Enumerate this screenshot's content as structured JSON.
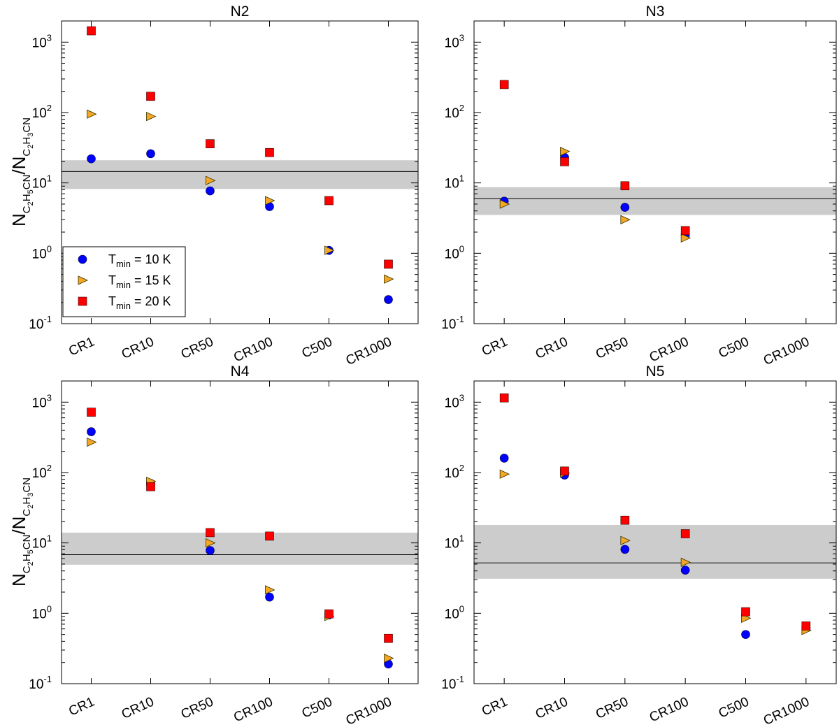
{
  "figure": {
    "ylabel_main": "N",
    "ylabel_num_sub": "C",
    "ylabel_num_sub2": "2",
    "ylabel_num_sub3": "H",
    "ylabel_num_sub4": "5",
    "ylabel_num_sub5": "CN",
    "ylabel_slash": "/N",
    "ylabel_den_sub": "C",
    "ylabel_den_sub2": "2",
    "ylabel_den_sub3": "H",
    "ylabel_den_sub4": "3",
    "ylabel_den_sub5": "CN",
    "legend": [
      {
        "prefix": "T",
        "sub": "min",
        "suffix": " = 10 K"
      },
      {
        "prefix": "T",
        "sub": "min",
        "suffix": " = 15 K"
      },
      {
        "prefix": "T",
        "sub": "min",
        "suffix": " = 20 K"
      }
    ]
  },
  "chart_data": [
    {
      "type": "scatter",
      "title": "N2",
      "yscale": "log",
      "ylim": [
        0.1,
        2000
      ],
      "yticks": [
        {
          "base": "10",
          "exp": "-1"
        },
        {
          "base": "10",
          "exp": "0"
        },
        {
          "base": "10",
          "exp": "1"
        },
        {
          "base": "10",
          "exp": "2"
        },
        {
          "base": "10",
          "exp": "3"
        }
      ],
      "categories": [
        "CR1",
        "CR10",
        "CR50",
        "CR100",
        "C500",
        "CR1000"
      ],
      "band": {
        "low": 8.2,
        "high": 21,
        "line": 14.5
      },
      "legend_position": "lower-left",
      "series": [
        {
          "name": "Tmin = 10 K",
          "marker": "circle",
          "color": "#0000ff",
          "values": [
            22,
            26,
            7.7,
            4.6,
            1.1,
            0.22
          ]
        },
        {
          "name": "Tmin = 15 K",
          "marker": "triangle-right",
          "color": "#f5a623",
          "values": [
            95,
            88,
            10.8,
            5.6,
            1.1,
            0.43
          ]
        },
        {
          "name": "Tmin = 20 K",
          "marker": "square",
          "color": "#ff0000",
          "values": [
            1450,
            170,
            36,
            27,
            5.6,
            0.7
          ]
        }
      ]
    },
    {
      "type": "scatter",
      "title": "N3",
      "yscale": "log",
      "ylim": [
        0.1,
        2000
      ],
      "yticks": [
        {
          "base": "10",
          "exp": "-1"
        },
        {
          "base": "10",
          "exp": "0"
        },
        {
          "base": "10",
          "exp": "1"
        },
        {
          "base": "10",
          "exp": "2"
        },
        {
          "base": "10",
          "exp": "3"
        }
      ],
      "categories": [
        "CR1",
        "CR10",
        "CR50",
        "CR100",
        "C500",
        "CR1000"
      ],
      "band": {
        "low": 3.5,
        "high": 8.7,
        "line": 6.0
      },
      "series": [
        {
          "name": "Tmin = 10 K",
          "marker": "circle",
          "color": "#0000ff",
          "values": [
            5.5,
            23,
            4.5,
            1.8,
            null,
            null
          ]
        },
        {
          "name": "Tmin = 15 K",
          "marker": "triangle-right",
          "color": "#f5a623",
          "values": [
            5.0,
            28,
            3.0,
            1.65,
            null,
            null
          ]
        },
        {
          "name": "Tmin = 20 K",
          "marker": "square",
          "color": "#ff0000",
          "values": [
            250,
            20,
            9.1,
            2.1,
            null,
            null
          ]
        }
      ]
    },
    {
      "type": "scatter",
      "title": "N4",
      "yscale": "log",
      "ylim": [
        0.1,
        2000
      ],
      "yticks": [
        {
          "base": "10",
          "exp": "-1"
        },
        {
          "base": "10",
          "exp": "0"
        },
        {
          "base": "10",
          "exp": "1"
        },
        {
          "base": "10",
          "exp": "2"
        },
        {
          "base": "10",
          "exp": "3"
        }
      ],
      "categories": [
        "CR1",
        "CR10",
        "CR50",
        "CR100",
        "C500",
        "CR1000"
      ],
      "band": {
        "low": 4.9,
        "high": 14,
        "line": 6.8
      },
      "series": [
        {
          "name": "Tmin = 10 K",
          "marker": "circle",
          "color": "#0000ff",
          "values": [
            380,
            70,
            7.8,
            1.7,
            0.95,
            0.19
          ]
        },
        {
          "name": "Tmin = 15 K",
          "marker": "triangle-right",
          "color": "#f5a623",
          "values": [
            270,
            75,
            10.0,
            2.15,
            0.9,
            0.23
          ]
        },
        {
          "name": "Tmin = 20 K",
          "marker": "square",
          "color": "#ff0000",
          "values": [
            720,
            63,
            14,
            12.5,
            0.98,
            0.44
          ]
        }
      ]
    },
    {
      "type": "scatter",
      "title": "N5",
      "yscale": "log",
      "ylim": [
        0.1,
        2000
      ],
      "yticks": [
        {
          "base": "10",
          "exp": "-1"
        },
        {
          "base": "10",
          "exp": "0"
        },
        {
          "base": "10",
          "exp": "1"
        },
        {
          "base": "10",
          "exp": "2"
        },
        {
          "base": "10",
          "exp": "3"
        }
      ],
      "categories": [
        "CR1",
        "CR10",
        "CR50",
        "CR100",
        "C500",
        "CR1000"
      ],
      "band": {
        "low": 3.1,
        "high": 18,
        "line": 5.2
      },
      "series": [
        {
          "name": "Tmin = 10 K",
          "marker": "circle",
          "color": "#0000ff",
          "values": [
            160,
            92,
            8.1,
            4.1,
            0.5,
            0.62
          ]
        },
        {
          "name": "Tmin = 15 K",
          "marker": "triangle-right",
          "color": "#f5a623",
          "values": [
            95,
            98,
            10.8,
            5.3,
            0.85,
            0.57
          ]
        },
        {
          "name": "Tmin = 20 K",
          "marker": "square",
          "color": "#ff0000",
          "values": [
            1150,
            105,
            21,
            13.5,
            1.05,
            0.66
          ]
        }
      ]
    }
  ]
}
